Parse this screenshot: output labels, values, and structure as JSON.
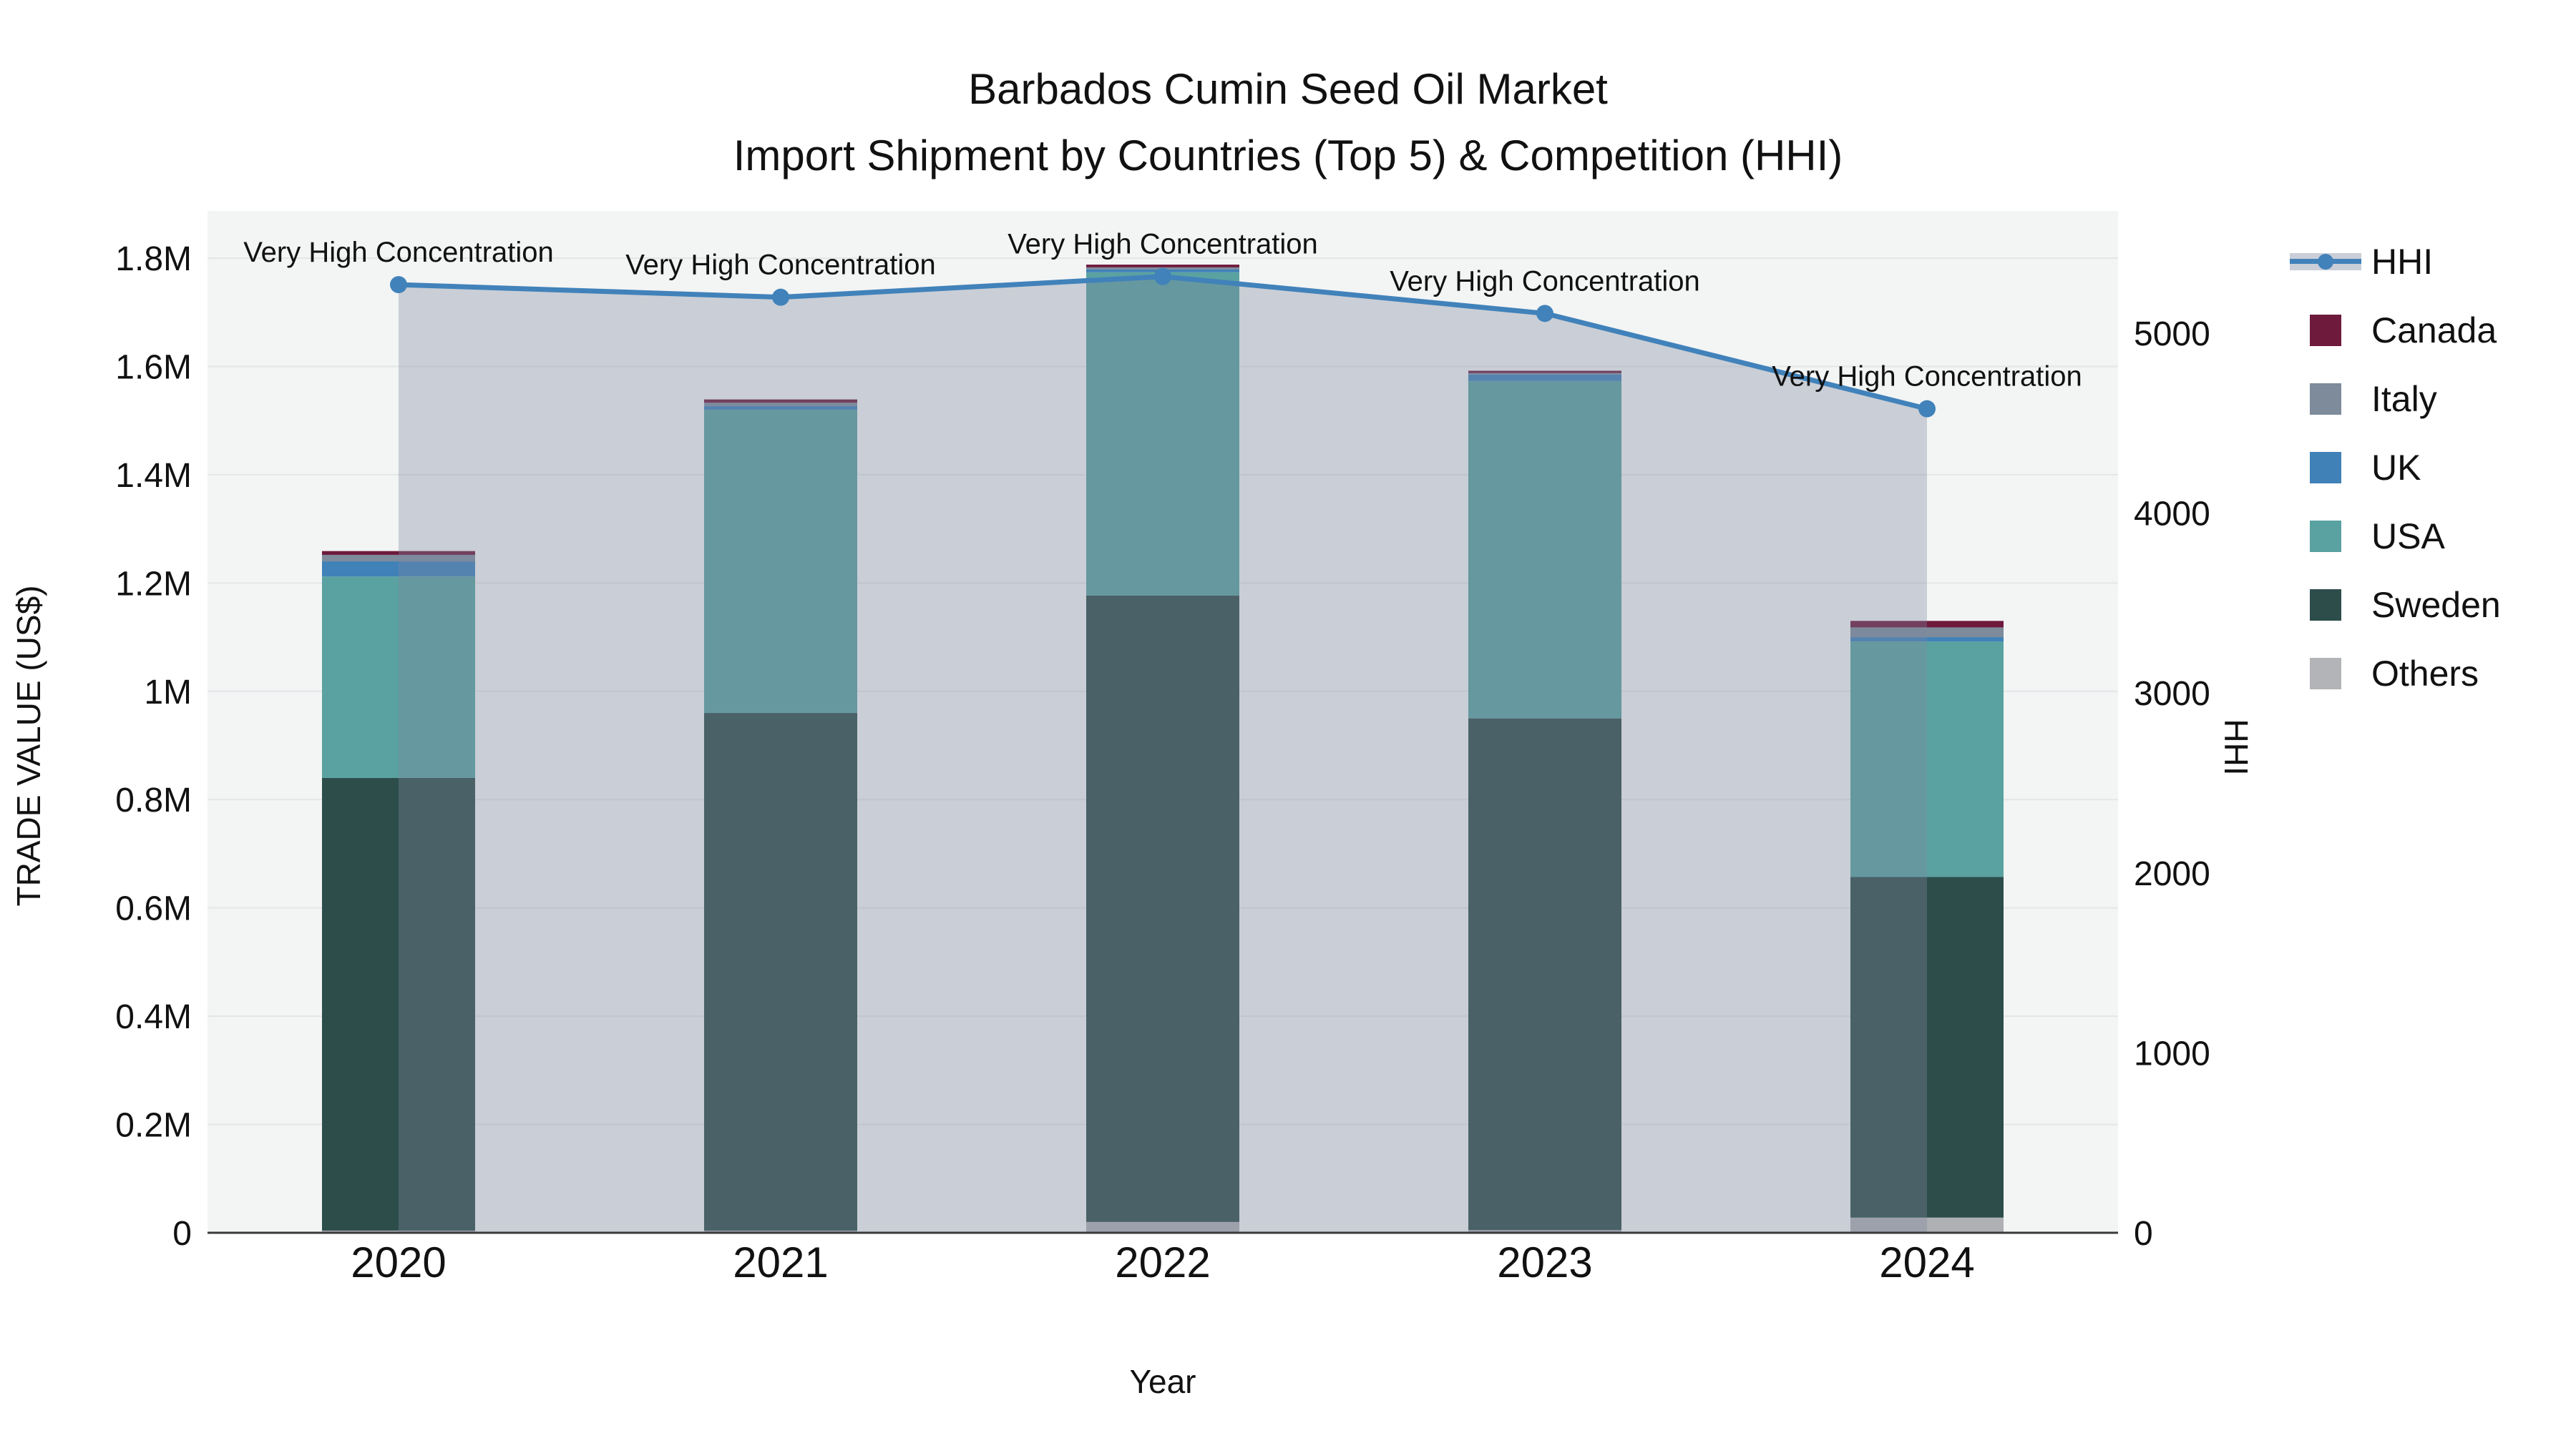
{
  "title": {
    "line1": "Barbados Cumin Seed Oil Market",
    "line2": "Import Shipment by Countries (Top 5) & Competition (HHI)"
  },
  "axes": {
    "x": {
      "title": "Year",
      "categories": [
        "2020",
        "2021",
        "2022",
        "2023",
        "2024"
      ]
    },
    "y_left": {
      "title": "TRADE VALUE (US$)",
      "tick_labels": [
        "0",
        "0.2M",
        "0.4M",
        "0.6M",
        "0.8M",
        "1M",
        "1.2M",
        "1.4M",
        "1.6M",
        "1.8M"
      ],
      "tick_values": [
        0,
        200000,
        400000,
        600000,
        800000,
        1000000,
        1200000,
        1400000,
        1600000,
        1800000
      ],
      "range": [
        0,
        1890000
      ]
    },
    "y_right": {
      "title": "HHI",
      "tick_labels": [
        "0",
        "1000",
        "2000",
        "3000",
        "4000",
        "5000"
      ],
      "tick_values": [
        0,
        1000,
        2000,
        3000,
        4000,
        5000
      ],
      "range": [
        0,
        5680
      ]
    }
  },
  "chart_data": {
    "type": "bar+line",
    "categories": [
      "2020",
      "2021",
      "2022",
      "2023",
      "2024"
    ],
    "bar_stack_order_bottom_to_top": [
      "Others",
      "Sweden",
      "USA",
      "UK",
      "Italy",
      "Canada"
    ],
    "series": [
      {
        "name": "Others",
        "color": "#aeb0b4",
        "values": [
          4000,
          4000,
          20000,
          5000,
          28000
        ]
      },
      {
        "name": "Sweden",
        "color": "#2d4d4b",
        "values": [
          836000,
          956000,
          1157000,
          945000,
          629000
        ]
      },
      {
        "name": "USA",
        "color": "#5aa1a1",
        "values": [
          372000,
          560000,
          597000,
          623000,
          435000
        ]
      },
      {
        "name": "UK",
        "color": "#4081b8",
        "values": [
          28000,
          7000,
          5000,
          12000,
          8000
        ]
      },
      {
        "name": "Italy",
        "color": "#7d8b9b",
        "values": [
          12000,
          6000,
          4000,
          3000,
          18000
        ]
      },
      {
        "name": "Canada",
        "color": "#6e1a3d",
        "values": [
          7000,
          6000,
          5000,
          4000,
          12000
        ]
      }
    ],
    "line": {
      "name": "HHI",
      "color": "#4182ba",
      "area_fill": "rgba(125,135,158,0.35)",
      "values": [
        5270,
        5200,
        5315,
        5110,
        4580
      ]
    },
    "annotations": [
      "Very High Concentration",
      "Very High Concentration",
      "Very High Concentration",
      "Very High Concentration",
      "Very High Concentration"
    ]
  },
  "legend": {
    "items": [
      {
        "label": "HHI",
        "type": "line",
        "color": "#4182ba",
        "band": "#c9ced8"
      },
      {
        "label": "Canada",
        "type": "square",
        "color": "#6e1a3d"
      },
      {
        "label": "Italy",
        "type": "square",
        "color": "#7d8b9b"
      },
      {
        "label": "UK",
        "type": "square",
        "color": "#4081b8"
      },
      {
        "label": "USA",
        "type": "square",
        "color": "#5aa1a1"
      },
      {
        "label": "Sweden",
        "type": "square",
        "color": "#2d4d4b"
      },
      {
        "label": "Others",
        "type": "square",
        "color": "#b2b4b7"
      }
    ]
  },
  "style": {
    "plot_bg": "#f3f4f4",
    "gridline": "#e3e6e8",
    "axis_line": "#3a3a3a",
    "text_color": "#111111"
  }
}
